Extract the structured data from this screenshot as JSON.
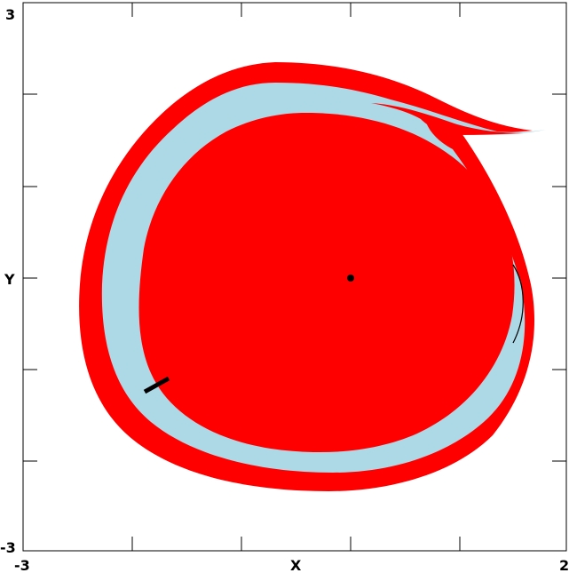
{
  "colors": {
    "background": "#ffffff",
    "outer_region": "#ff0000",
    "band_region": "#add8e6",
    "inner_region": "#ff0000",
    "frame": "#000000",
    "equilibrium_point": "#000000",
    "curve": "#000000"
  },
  "axes": {
    "x_label": "X",
    "y_label": "Y",
    "x_min_label": "-3",
    "x_max_label": "2",
    "y_min_label": "-3",
    "y_max_label": "3",
    "x_range": [
      -3,
      2
    ],
    "y_range": [
      -3,
      3
    ],
    "x_ticks": [
      -2,
      -1,
      0,
      1
    ],
    "y_ticks": [
      -2,
      -1,
      0,
      1,
      2
    ]
  },
  "markers": {
    "equilibrium": {
      "x": 0,
      "y": 0
    },
    "thick_segment": {
      "x1": -1.92,
      "y1": -1.23,
      "x2": -1.68,
      "y2": -1.1
    },
    "thin_arc": {
      "x1": 1.48,
      "y1": 0.12,
      "x2": 1.48,
      "y2": -0.72
    }
  }
}
